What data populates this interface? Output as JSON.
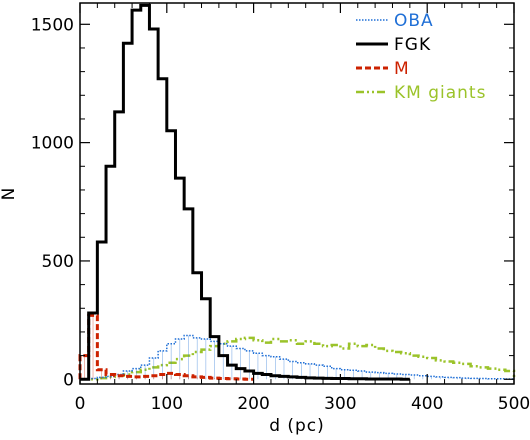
{
  "chart_data": {
    "type": "line",
    "style": "step-histogram",
    "xlabel": "d (pc)",
    "ylabel": "N",
    "xlim": [
      0,
      500
    ],
    "ylim": [
      -20,
      1590
    ],
    "xticks": [
      0,
      100,
      200,
      300,
      400,
      500
    ],
    "yticks": [
      0,
      500,
      1000,
      1500
    ],
    "x_tick_labels": [
      "0",
      "100",
      "200",
      "300",
      "400",
      "500"
    ],
    "y_tick_labels": [
      "0",
      "500",
      "1000",
      "1500"
    ],
    "bin_width": 10,
    "grid": false,
    "legend_position": "top-right",
    "series": [
      {
        "name": "OBA",
        "color": "#1f6fd6",
        "dash": "dotted",
        "x": [
          0,
          10,
          20,
          30,
          40,
          50,
          60,
          70,
          80,
          90,
          100,
          110,
          120,
          130,
          140,
          150,
          160,
          170,
          180,
          190,
          200,
          210,
          220,
          230,
          240,
          250,
          260,
          270,
          280,
          290,
          300,
          310,
          320,
          330,
          340,
          350,
          360,
          370,
          380,
          390,
          400,
          410,
          420,
          430,
          440,
          450,
          460,
          470,
          480,
          490
        ],
        "values": [
          2,
          3,
          8,
          12,
          20,
          35,
          45,
          60,
          90,
          120,
          150,
          170,
          185,
          175,
          170,
          160,
          150,
          140,
          130,
          120,
          110,
          100,
          95,
          85,
          75,
          70,
          65,
          60,
          55,
          45,
          40,
          38,
          35,
          30,
          28,
          25,
          22,
          20,
          18,
          15,
          12,
          10,
          8,
          7,
          5,
          4,
          3,
          2,
          2,
          1
        ]
      },
      {
        "name": "FGK",
        "color": "#000000",
        "dash": "solid",
        "x": [
          0,
          10,
          20,
          30,
          40,
          50,
          60,
          70,
          80,
          90,
          100,
          110,
          120,
          130,
          140,
          150,
          160,
          170,
          180,
          190,
          200,
          210,
          220,
          230,
          240,
          250,
          260,
          270,
          280,
          290,
          300,
          310,
          320,
          330,
          340,
          350,
          360,
          370
        ],
        "values": [
          0,
          280,
          580,
          900,
          1130,
          1420,
          1560,
          1580,
          1480,
          1270,
          1050,
          850,
          720,
          450,
          340,
          180,
          100,
          60,
          45,
          35,
          25,
          20,
          15,
          12,
          10,
          8,
          6,
          5,
          4,
          3,
          3,
          2,
          2,
          1,
          1,
          1,
          1,
          0
        ]
      },
      {
        "name": "M",
        "color": "#cc2200",
        "dash": "dashed",
        "x": [
          0,
          10,
          20,
          30,
          40,
          50,
          60,
          70,
          80,
          90,
          100,
          110,
          120,
          130,
          140,
          150,
          160,
          170,
          180,
          190
        ],
        "values": [
          100,
          270,
          40,
          20,
          15,
          12,
          10,
          12,
          15,
          20,
          25,
          20,
          15,
          10,
          8,
          5,
          3,
          2,
          1,
          0
        ]
      },
      {
        "name": "KM giants",
        "color": "#9bc32a",
        "dash": "dash-dot-dot",
        "x": [
          0,
          10,
          20,
          30,
          40,
          50,
          60,
          70,
          80,
          90,
          100,
          110,
          120,
          130,
          140,
          150,
          160,
          170,
          180,
          190,
          200,
          210,
          220,
          230,
          240,
          250,
          260,
          270,
          280,
          290,
          300,
          310,
          320,
          330,
          340,
          350,
          360,
          370,
          380,
          390,
          400,
          410,
          420,
          430,
          440,
          450,
          460,
          470,
          480,
          490
        ],
        "values": [
          0,
          0,
          5,
          10,
          15,
          20,
          30,
          40,
          50,
          60,
          70,
          85,
          100,
          115,
          125,
          140,
          150,
          160,
          170,
          175,
          165,
          155,
          170,
          160,
          165,
          150,
          160,
          150,
          140,
          145,
          130,
          150,
          140,
          145,
          130,
          120,
          115,
          110,
          100,
          95,
          90,
          80,
          75,
          70,
          65,
          55,
          50,
          45,
          40,
          35
        ]
      }
    ]
  }
}
